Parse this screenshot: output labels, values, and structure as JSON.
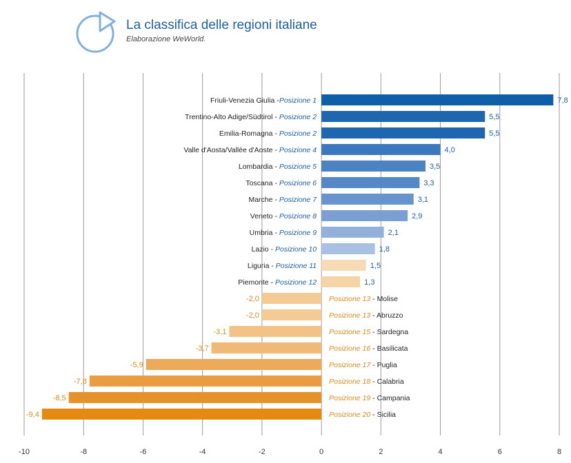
{
  "header": {
    "title": "La classifica delle regioni italiane",
    "subtitle": "Elaborazione WeWorld."
  },
  "chart_data": {
    "type": "bar",
    "orientation": "horizontal",
    "title": "La classifica delle regioni italiane",
    "subtitle": "Elaborazione WeWorld.",
    "xlim": [
      -10,
      8
    ],
    "xticks": [
      -10,
      -8,
      -6,
      -4,
      -2,
      0,
      2,
      4,
      6,
      8
    ],
    "grid": true,
    "position_label": "Posizione",
    "rows": [
      {
        "region": "Friuli-Venezia Giulia",
        "sep": " -",
        "rank": 1,
        "value": 7.8,
        "label": "7,8",
        "color": "#0f5ea8"
      },
      {
        "region": "Trentino-Alto Adige/Südtirol",
        "sep": " - ",
        "rank": 2,
        "value": 5.5,
        "label": "5,5",
        "color": "#1e67b0"
      },
      {
        "region": "Emilia-Romagna",
        "sep": " - ",
        "rank": 2,
        "value": 5.5,
        "label": "5,5",
        "color": "#1e67b0"
      },
      {
        "region": "Valle d'Aosta/Vallée d'Aoste",
        "sep": " - ",
        "rank": 4,
        "value": 4.0,
        "label": "4,0",
        "color": "#3b78bd"
      },
      {
        "region": "Lombardia",
        "sep": " - ",
        "rank": 5,
        "value": 3.5,
        "label": "3,5",
        "color": "#4a82c2"
      },
      {
        "region": "Toscana",
        "sep": " - ",
        "rank": 6,
        "value": 3.3,
        "label": "3,3",
        "color": "#5588c6"
      },
      {
        "region": "Marche",
        "sep": " - ",
        "rank": 7,
        "value": 3.1,
        "label": "3,1",
        "color": "#6794cc"
      },
      {
        "region": "Veneto",
        "sep": " - ",
        "rank": 8,
        "value": 2.9,
        "label": "2,9",
        "color": "#7b9fd2"
      },
      {
        "region": "Umbria",
        "sep": " - ",
        "rank": 9,
        "value": 2.1,
        "label": "2,1",
        "color": "#93b0da"
      },
      {
        "region": "Lazio",
        "sep": " - ",
        "rank": 10,
        "value": 1.8,
        "label": "1,8",
        "color": "#a9c0e2"
      },
      {
        "region": "Liguria",
        "sep": " - ",
        "rank": 11,
        "value": 1.5,
        "label": "1,5",
        "color": "#f6dcb6"
      },
      {
        "region": "Piemonte",
        "sep": " - ",
        "rank": 12,
        "value": 1.3,
        "label": "1,3",
        "color": "#f5d4a6"
      },
      {
        "region": "Molise",
        "sep": " - ",
        "rank": 13,
        "value": -2.0,
        "label": "-2,0",
        "color": "#f4cb95"
      },
      {
        "region": "Abruzzo",
        "sep": " - ",
        "rank": 13,
        "value": -2.0,
        "label": "-2,0",
        "color": "#f4cb95"
      },
      {
        "region": "Sardegna",
        "sep": " - ",
        "rank": 15,
        "value": -3.1,
        "label": "-3,1",
        "color": "#f2c286"
      },
      {
        "region": "Basilicata",
        "sep": " - ",
        "rank": 16,
        "value": -3.7,
        "label": "-3,7",
        "color": "#f0ba76"
      },
      {
        "region": "Puglia",
        "sep": " - ",
        "rank": 17,
        "value": -5.9,
        "label": "-5,9",
        "color": "#eda95a"
      },
      {
        "region": "Calabria",
        "sep": " - ",
        "rank": 18,
        "value": -7.8,
        "label": "-7,8",
        "color": "#e99c40"
      },
      {
        "region": "Campania",
        "sep": " - ",
        "rank": 19,
        "value": -8.5,
        "label": "-8,5",
        "color": "#e6922a"
      },
      {
        "region": "Sicilia",
        "sep": " - ",
        "rank": 20,
        "value": -9.4,
        "label": "-9,4",
        "color": "#e48a10"
      }
    ],
    "colors": {
      "positive_text": "#1f5fa6",
      "negative_text": "#e08a1e",
      "region_text": "#222222",
      "grid": "#9a9a9a"
    }
  }
}
